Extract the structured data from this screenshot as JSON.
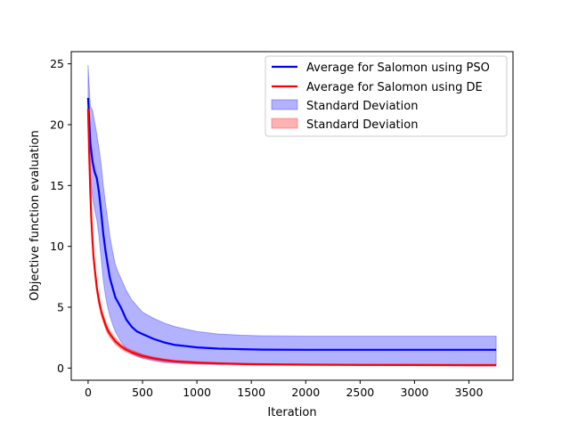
{
  "chart_data": {
    "type": "line",
    "title": "",
    "xlabel": "Iteration",
    "ylabel": "Objective function evaluation",
    "xlim": [
      -155,
      3905
    ],
    "ylim": [
      -1.0,
      26.0
    ],
    "xticks": [
      0,
      500,
      1000,
      1500,
      2000,
      2500,
      3000,
      3500
    ],
    "yticks": [
      0,
      5,
      10,
      15,
      20,
      25
    ],
    "grid": false,
    "legend_position": "top-right",
    "series": [
      {
        "name": "Average for Salomon using PSO",
        "color": "#0000ff",
        "band_label": "Standard Deviation",
        "band_color": "#0000ff",
        "x": [
          0,
          20,
          40,
          60,
          80,
          100,
          120,
          140,
          160,
          180,
          200,
          225,
          250,
          275,
          300,
          350,
          400,
          450,
          500,
          600,
          700,
          800,
          900,
          1000,
          1200,
          1400,
          1600,
          2000,
          2500,
          3000,
          3500,
          3750
        ],
        "y": [
          22.2,
          18.5,
          17.0,
          16.1,
          15.6,
          14.4,
          12.8,
          11.0,
          9.6,
          8.5,
          7.4,
          6.6,
          5.8,
          5.4,
          5.0,
          4.0,
          3.4,
          3.0,
          2.8,
          2.4,
          2.1,
          1.9,
          1.8,
          1.7,
          1.6,
          1.55,
          1.52,
          1.5,
          1.5,
          1.5,
          1.5,
          1.5
        ],
        "y_lower": [
          19.6,
          15.8,
          14.0,
          13.0,
          12.2,
          10.8,
          9.0,
          7.2,
          5.9,
          5.0,
          4.3,
          3.6,
          3.0,
          2.6,
          2.2,
          1.6,
          1.2,
          0.95,
          0.8,
          0.6,
          0.45,
          0.4,
          0.35,
          0.32,
          0.3,
          0.3,
          0.3,
          0.3,
          0.3,
          0.3,
          0.3,
          0.3
        ],
        "y_upper": [
          24.9,
          21.5,
          21.2,
          20.2,
          19.2,
          18.0,
          16.7,
          15.0,
          13.5,
          12.2,
          10.8,
          9.6,
          8.5,
          7.9,
          7.4,
          6.4,
          5.6,
          5.1,
          4.6,
          4.1,
          3.7,
          3.4,
          3.2,
          3.0,
          2.8,
          2.7,
          2.65,
          2.62,
          2.62,
          2.62,
          2.62,
          2.62
        ]
      },
      {
        "name": "Average for Salomon using DE",
        "color": "#ff0000",
        "band_label": "Standard Deviation",
        "band_color": "#ff0000",
        "x": [
          0,
          10,
          20,
          30,
          40,
          50,
          60,
          80,
          100,
          125,
          150,
          175,
          200,
          250,
          300,
          350,
          400,
          500,
          600,
          700,
          800,
          1000,
          1200,
          1500,
          2000,
          2500,
          3000,
          3500,
          3750
        ],
        "y": [
          21.3,
          17.5,
          14.5,
          12.2,
          10.5,
          9.2,
          8.2,
          6.6,
          5.5,
          4.5,
          3.8,
          3.2,
          2.8,
          2.2,
          1.8,
          1.5,
          1.3,
          1.0,
          0.8,
          0.65,
          0.55,
          0.45,
          0.38,
          0.32,
          0.28,
          0.26,
          0.25,
          0.24,
          0.24
        ],
        "y_lower": [
          21.0,
          17.1,
          14.1,
          11.8,
          10.1,
          8.8,
          7.8,
          6.2,
          5.1,
          4.2,
          3.5,
          2.9,
          2.55,
          1.95,
          1.6,
          1.32,
          1.12,
          0.86,
          0.68,
          0.55,
          0.46,
          0.37,
          0.31,
          0.26,
          0.22,
          0.2,
          0.19,
          0.18,
          0.18
        ],
        "y_upper": [
          21.6,
          17.9,
          14.9,
          12.6,
          10.9,
          9.6,
          8.6,
          7.0,
          5.9,
          4.8,
          4.1,
          3.5,
          3.05,
          2.45,
          2.0,
          1.68,
          1.48,
          1.14,
          0.92,
          0.75,
          0.64,
          0.53,
          0.45,
          0.38,
          0.34,
          0.32,
          0.31,
          0.3,
          0.3
        ]
      }
    ]
  }
}
